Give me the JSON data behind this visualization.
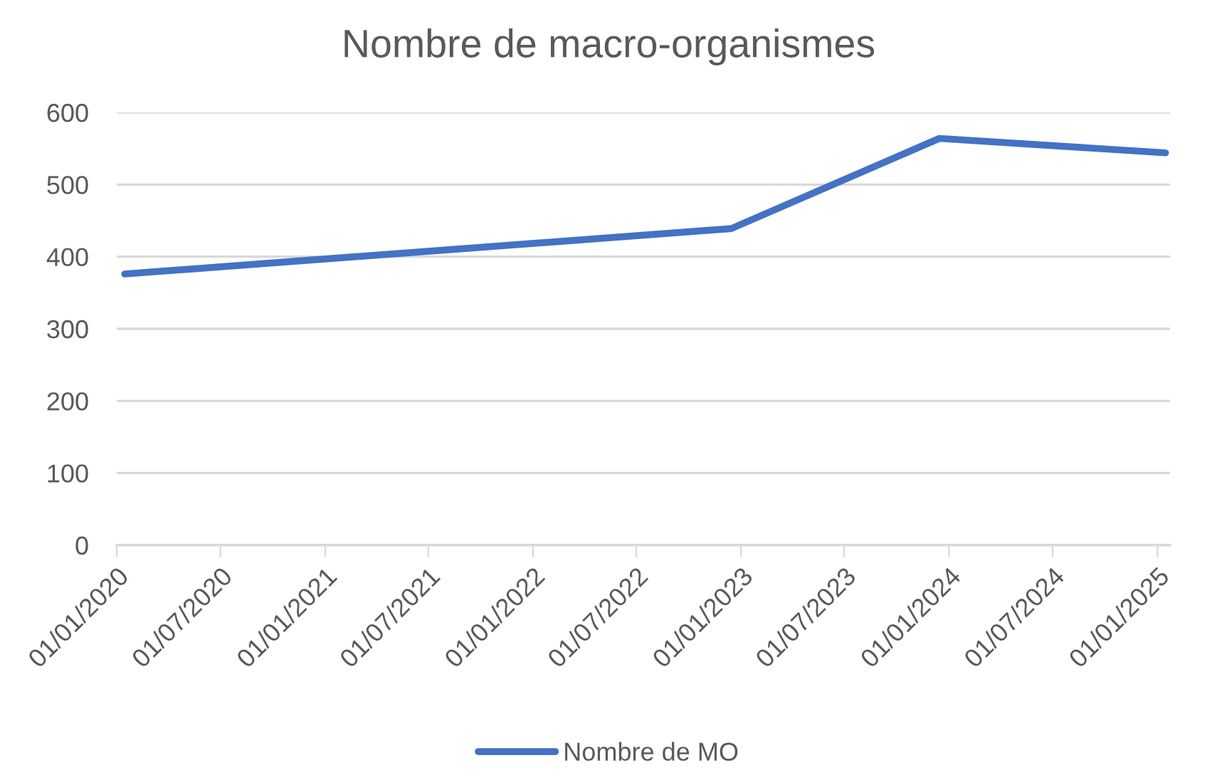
{
  "chart_data": {
    "type": "line",
    "title": "Nombre de macro-organismes",
    "x": [
      "2020-01-15",
      "2022-12-15",
      "2023-12-15",
      "2025-01-15"
    ],
    "series": [
      {
        "name": "Nombre de MO",
        "color": "#4472c4",
        "values": [
          376,
          439,
          564,
          544
        ]
      }
    ],
    "xlim": [
      "2020-01-01",
      "2025-01-23"
    ],
    "xticks": [
      {
        "value": "2020-01-01",
        "label": "01/01/2020"
      },
      {
        "value": "2020-07-01",
        "label": "01/07/2020"
      },
      {
        "value": "2021-01-01",
        "label": "01/01/2021"
      },
      {
        "value": "2021-07-01",
        "label": "01/07/2021"
      },
      {
        "value": "2022-01-01",
        "label": "01/01/2022"
      },
      {
        "value": "2022-07-01",
        "label": "01/07/2022"
      },
      {
        "value": "2023-01-01",
        "label": "01/01/2023"
      },
      {
        "value": "2023-07-01",
        "label": "01/07/2023"
      },
      {
        "value": "2024-01-01",
        "label": "01/01/2024"
      },
      {
        "value": "2024-07-01",
        "label": "01/07/2024"
      },
      {
        "value": "2025-01-01",
        "label": "01/01/2025"
      }
    ],
    "ylim": [
      0,
      600
    ],
    "yticks": [
      0,
      100,
      200,
      300,
      400,
      500,
      600
    ],
    "grid": "y",
    "legend": "bottom",
    "marker": "none",
    "line_style": "solid"
  }
}
